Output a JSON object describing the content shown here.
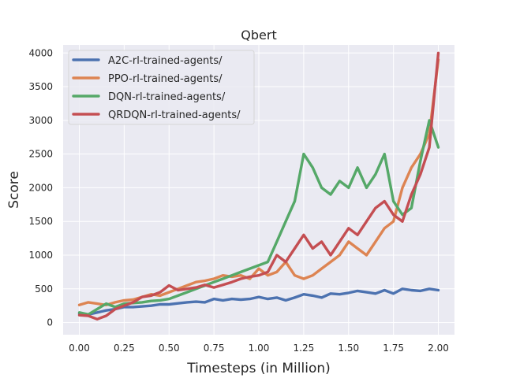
{
  "chart_data": {
    "type": "line",
    "title": "Qbert",
    "xlabel": "Timesteps (in Million)",
    "ylabel": "Score",
    "xlim": [
      -0.09,
      2.09
    ],
    "ylim": [
      -180,
      4120
    ],
    "x_ticks": [
      0.0,
      0.25,
      0.5,
      0.75,
      1.0,
      1.25,
      1.5,
      1.75,
      2.0
    ],
    "x_tick_labels": [
      "0.00",
      "0.25",
      "0.50",
      "0.75",
      "1.00",
      "1.25",
      "1.50",
      "1.75",
      "2.00"
    ],
    "y_ticks": [
      0,
      500,
      1000,
      1500,
      2000,
      2500,
      3000,
      3500,
      4000
    ],
    "y_tick_labels": [
      "0",
      "500",
      "1000",
      "1500",
      "2000",
      "2500",
      "3000",
      "3500",
      "4000"
    ],
    "grid": true,
    "legend_position": "top-left",
    "series": [
      {
        "name": "A2C-rl-trained-agents/",
        "color": "#4c72b0",
        "points": [
          [
            0.0,
            130
          ],
          [
            0.05,
            120
          ],
          [
            0.1,
            150
          ],
          [
            0.15,
            180
          ],
          [
            0.2,
            200
          ],
          [
            0.25,
            230
          ],
          [
            0.3,
            230
          ],
          [
            0.35,
            240
          ],
          [
            0.4,
            250
          ],
          [
            0.45,
            270
          ],
          [
            0.5,
            270
          ],
          [
            0.55,
            285
          ],
          [
            0.6,
            300
          ],
          [
            0.65,
            310
          ],
          [
            0.7,
            300
          ],
          [
            0.75,
            350
          ],
          [
            0.8,
            330
          ],
          [
            0.85,
            350
          ],
          [
            0.9,
            340
          ],
          [
            0.95,
            350
          ],
          [
            1.0,
            380
          ],
          [
            1.05,
            350
          ],
          [
            1.1,
            370
          ],
          [
            1.15,
            330
          ],
          [
            1.2,
            370
          ],
          [
            1.25,
            420
          ],
          [
            1.3,
            400
          ],
          [
            1.35,
            370
          ],
          [
            1.4,
            430
          ],
          [
            1.45,
            420
          ],
          [
            1.5,
            440
          ],
          [
            1.55,
            470
          ],
          [
            1.6,
            450
          ],
          [
            1.65,
            430
          ],
          [
            1.7,
            480
          ],
          [
            1.75,
            430
          ],
          [
            1.8,
            500
          ],
          [
            1.85,
            480
          ],
          [
            1.9,
            470
          ],
          [
            1.95,
            500
          ],
          [
            2.0,
            480
          ]
        ]
      },
      {
        "name": "PPO-rl-trained-agents/",
        "color": "#dd8452",
        "points": [
          [
            0.0,
            260
          ],
          [
            0.05,
            300
          ],
          [
            0.1,
            280
          ],
          [
            0.15,
            260
          ],
          [
            0.2,
            300
          ],
          [
            0.25,
            330
          ],
          [
            0.3,
            340
          ],
          [
            0.35,
            380
          ],
          [
            0.4,
            420
          ],
          [
            0.45,
            400
          ],
          [
            0.5,
            450
          ],
          [
            0.55,
            500
          ],
          [
            0.6,
            550
          ],
          [
            0.65,
            600
          ],
          [
            0.7,
            620
          ],
          [
            0.75,
            650
          ],
          [
            0.8,
            700
          ],
          [
            0.85,
            680
          ],
          [
            0.9,
            700
          ],
          [
            0.95,
            650
          ],
          [
            1.0,
            800
          ],
          [
            1.05,
            700
          ],
          [
            1.1,
            750
          ],
          [
            1.15,
            900
          ],
          [
            1.2,
            700
          ],
          [
            1.25,
            650
          ],
          [
            1.3,
            700
          ],
          [
            1.35,
            800
          ],
          [
            1.4,
            900
          ],
          [
            1.45,
            1000
          ],
          [
            1.5,
            1200
          ],
          [
            1.55,
            1100
          ],
          [
            1.6,
            1000
          ],
          [
            1.65,
            1200
          ],
          [
            1.7,
            1400
          ],
          [
            1.75,
            1500
          ],
          [
            1.8,
            2000
          ],
          [
            1.85,
            2300
          ],
          [
            1.9,
            2500
          ],
          [
            1.95,
            2800
          ],
          [
            2.0,
            3900
          ]
        ]
      },
      {
        "name": "DQN-rl-trained-agents/",
        "color": "#55a868",
        "points": [
          [
            0.0,
            150
          ],
          [
            0.05,
            120
          ],
          [
            0.1,
            200
          ],
          [
            0.15,
            280
          ],
          [
            0.2,
            230
          ],
          [
            0.25,
            280
          ],
          [
            0.3,
            290
          ],
          [
            0.35,
            300
          ],
          [
            0.4,
            320
          ],
          [
            0.45,
            330
          ],
          [
            0.5,
            350
          ],
          [
            0.55,
            400
          ],
          [
            0.6,
            450
          ],
          [
            0.65,
            500
          ],
          [
            0.7,
            550
          ],
          [
            0.75,
            600
          ],
          [
            0.8,
            650
          ],
          [
            0.85,
            700
          ],
          [
            0.9,
            750
          ],
          [
            0.95,
            800
          ],
          [
            1.0,
            850
          ],
          [
            1.05,
            900
          ],
          [
            1.1,
            1200
          ],
          [
            1.15,
            1500
          ],
          [
            1.2,
            1800
          ],
          [
            1.25,
            2500
          ],
          [
            1.3,
            2300
          ],
          [
            1.35,
            2000
          ],
          [
            1.4,
            1900
          ],
          [
            1.45,
            2100
          ],
          [
            1.5,
            2000
          ],
          [
            1.55,
            2300
          ],
          [
            1.6,
            2000
          ],
          [
            1.65,
            2200
          ],
          [
            1.7,
            2500
          ],
          [
            1.75,
            1800
          ],
          [
            1.8,
            1600
          ],
          [
            1.85,
            1700
          ],
          [
            1.9,
            2400
          ],
          [
            1.95,
            3000
          ],
          [
            2.0,
            2600
          ]
        ]
      },
      {
        "name": "QRDQN-rl-trained-agents/",
        "color": "#c44e52",
        "points": [
          [
            0.0,
            110
          ],
          [
            0.05,
            100
          ],
          [
            0.1,
            50
          ],
          [
            0.15,
            100
          ],
          [
            0.2,
            200
          ],
          [
            0.25,
            250
          ],
          [
            0.3,
            300
          ],
          [
            0.35,
            380
          ],
          [
            0.4,
            400
          ],
          [
            0.45,
            450
          ],
          [
            0.5,
            550
          ],
          [
            0.55,
            480
          ],
          [
            0.6,
            500
          ],
          [
            0.65,
            520
          ],
          [
            0.7,
            560
          ],
          [
            0.75,
            520
          ],
          [
            0.8,
            560
          ],
          [
            0.85,
            600
          ],
          [
            0.9,
            650
          ],
          [
            0.95,
            680
          ],
          [
            1.0,
            700
          ],
          [
            1.05,
            750
          ],
          [
            1.1,
            1000
          ],
          [
            1.15,
            900
          ],
          [
            1.2,
            1100
          ],
          [
            1.25,
            1300
          ],
          [
            1.3,
            1100
          ],
          [
            1.35,
            1200
          ],
          [
            1.4,
            1000
          ],
          [
            1.45,
            1200
          ],
          [
            1.5,
            1400
          ],
          [
            1.55,
            1300
          ],
          [
            1.6,
            1500
          ],
          [
            1.65,
            1700
          ],
          [
            1.7,
            1800
          ],
          [
            1.75,
            1600
          ],
          [
            1.8,
            1500
          ],
          [
            1.85,
            1900
          ],
          [
            1.9,
            2200
          ],
          [
            1.95,
            2600
          ],
          [
            2.0,
            4000
          ]
        ]
      }
    ]
  }
}
